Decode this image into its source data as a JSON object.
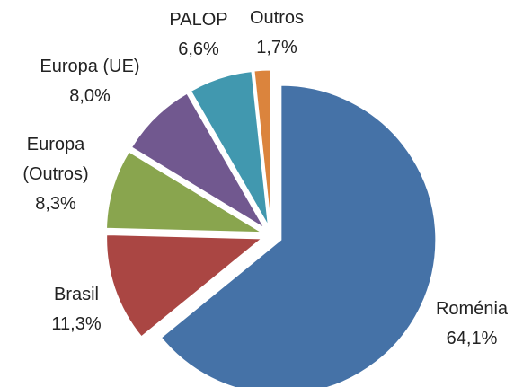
{
  "chart_data": {
    "type": "pie",
    "categories": [
      "Roménia",
      "Brasil",
      "Europa (Outros)",
      "Europa (UE)",
      "PALOP",
      "Outros"
    ],
    "values": [
      64.1,
      11.3,
      8.3,
      8.0,
      6.6,
      1.7
    ],
    "value_labels": [
      "64,1%",
      "11,3%",
      "8,3%",
      "8,0%",
      "6,6%",
      "1,7%"
    ],
    "colors": [
      "#4572a7",
      "#aa4643",
      "#89a54e",
      "#71588f",
      "#4198af",
      "#db843d"
    ]
  }
}
